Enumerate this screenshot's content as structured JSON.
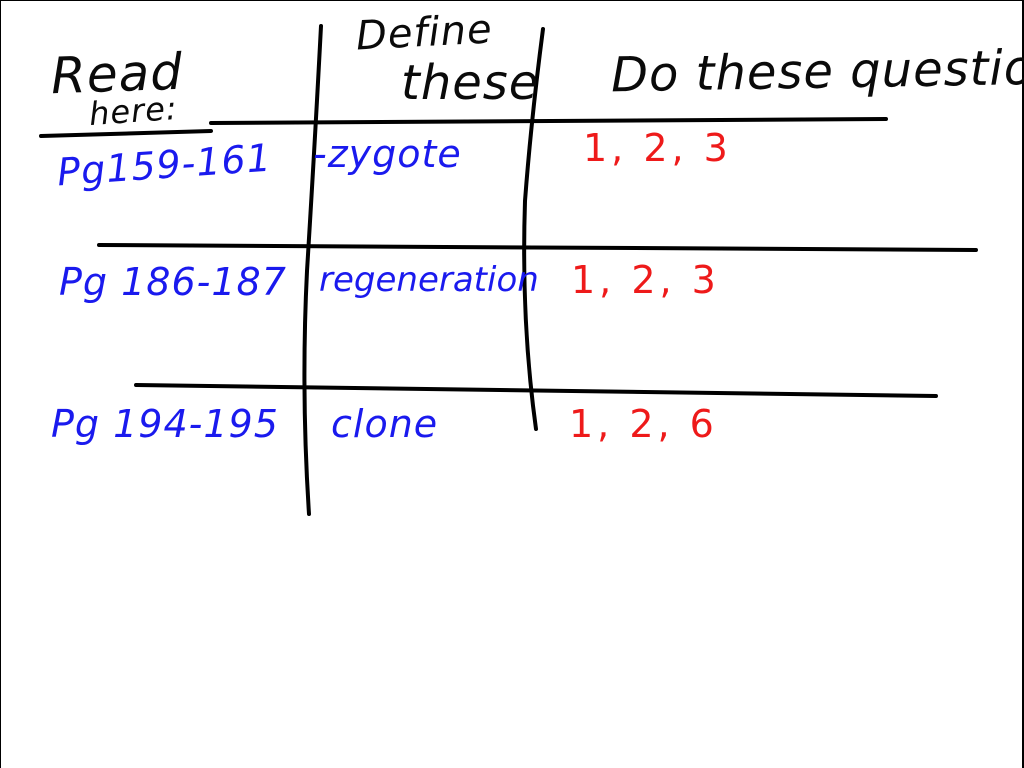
{
  "header": {
    "read_line1": "Read",
    "read_line2": "here:",
    "define_line1": "Define",
    "define_line2": "these",
    "do_questions": "Do these questions:"
  },
  "rows": [
    {
      "pages": "Pg159-161",
      "term": "-zygote",
      "questions": "1, 2, 3"
    },
    {
      "pages": "Pg 186-187",
      "term": "regeneration",
      "questions": "1, 2, 3"
    },
    {
      "pages": "Pg 194-195",
      "term": "clone",
      "questions": "1, 2, 6"
    }
  ],
  "colors": {
    "ink_black": "#0a0a0a",
    "ink_blue": "#1a1aee",
    "ink_red": "#ee1a1a",
    "background": "#ffffff"
  }
}
